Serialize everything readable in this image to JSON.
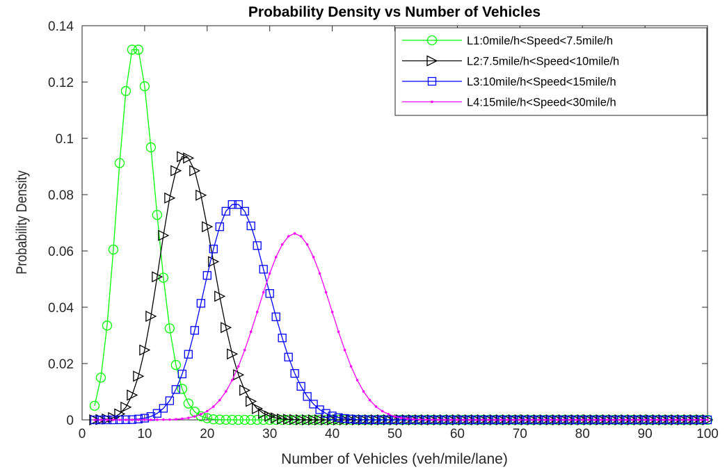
{
  "chart_data": {
    "type": "line",
    "title": "Probability Density vs Number of Vehicles",
    "xlabel": "Number of Vehicles (veh/mile/lane)",
    "ylabel": "Probability Density",
    "xlim": [
      0,
      100
    ],
    "ylim": [
      0,
      0.14
    ],
    "x_ticks": [
      0,
      10,
      20,
      30,
      40,
      50,
      60,
      70,
      80,
      90,
      100
    ],
    "x_tick_labels": [
      "0",
      "10",
      "20",
      "30",
      "40",
      "50",
      "60",
      "70",
      "80",
      "90",
      "100"
    ],
    "y_ticks": [
      0,
      0.02,
      0.04,
      0.06,
      0.08,
      0.1,
      0.12,
      0.14
    ],
    "y_tick_labels": [
      "0",
      "0.02",
      "0.04",
      "0.06",
      "0.08",
      "0.1",
      "0.12",
      "0.14"
    ],
    "grid": false,
    "legend_position": "top-right",
    "x": [
      2,
      3,
      4,
      5,
      6,
      7,
      8,
      9,
      10,
      11,
      12,
      13,
      14,
      15,
      16,
      17,
      18,
      19,
      20,
      21,
      22,
      23,
      24,
      25,
      26,
      27,
      28,
      29,
      30,
      31,
      32,
      33,
      34,
      35,
      36,
      37,
      38,
      39,
      40,
      41,
      42,
      43,
      44,
      45,
      46,
      47,
      48,
      49,
      50,
      51,
      52,
      53,
      54,
      55,
      56,
      57,
      58,
      59,
      60,
      61,
      62,
      63,
      64,
      65,
      66,
      67,
      68,
      69,
      70,
      71,
      72,
      73,
      74,
      75,
      76,
      77,
      78,
      79,
      80,
      81,
      82,
      83,
      84,
      85,
      86,
      87,
      88,
      89,
      90,
      91,
      92,
      93,
      94,
      95,
      96,
      97,
      98,
      99,
      100
    ],
    "series": [
      {
        "name": "L1:0mile/h<Speed<7.5mile/h",
        "color": "#00ff00",
        "marker": "circle",
        "marker_every": 1,
        "values": [
          0.005,
          0.015,
          0.0335,
          0.0605,
          0.0912,
          0.1168,
          0.1315,
          0.1315,
          0.1185,
          0.0968,
          0.0728,
          0.0505,
          0.0325,
          0.0195,
          0.011,
          0.0058,
          0.0029,
          0.0013,
          0.0006,
          0.0002,
          0.0001,
          4e-05,
          1e-05,
          0,
          0,
          0,
          0,
          0,
          0,
          0,
          0,
          0,
          0,
          0,
          0,
          0,
          0,
          0,
          0,
          0,
          0,
          0,
          0,
          0,
          0,
          0,
          0,
          0,
          0,
          0,
          0,
          0,
          0,
          0,
          0,
          0,
          0,
          0,
          0,
          0,
          0,
          0,
          0,
          0,
          0,
          0,
          0,
          0,
          0,
          0,
          0,
          0,
          0,
          0,
          0,
          0,
          0,
          0,
          0,
          0,
          0,
          0,
          0,
          0,
          0,
          0,
          0,
          0,
          0,
          0,
          0,
          0,
          0,
          0,
          0,
          0,
          0,
          0,
          0
        ]
      },
      {
        "name": "L2:7.5mile/h<Speed<10mile/h",
        "color": "#000000",
        "marker": "triangle-right",
        "marker_every": 1,
        "values": [
          0,
          0.0001,
          0.0003,
          0.0008,
          0.0021,
          0.0045,
          0.0088,
          0.0155,
          0.0248,
          0.0368,
          0.0508,
          0.0655,
          0.0788,
          0.0885,
          0.0935,
          0.093,
          0.0885,
          0.0798,
          0.0686,
          0.0562,
          0.0439,
          0.0328,
          0.0234,
          0.016,
          0.0105,
          0.0066,
          0.004,
          0.0023,
          0.0013,
          0.0007,
          0.0003,
          0.0002,
          0.0001,
          3e-05,
          1e-05,
          0,
          0,
          0,
          0,
          0,
          0,
          0,
          0,
          0,
          0,
          0,
          0,
          0,
          0,
          0,
          0,
          0,
          0,
          0,
          0,
          0,
          0,
          0,
          0,
          0,
          0,
          0,
          0,
          0,
          0,
          0,
          0,
          0,
          0,
          0,
          0,
          0,
          0,
          0,
          0,
          0,
          0,
          0,
          0,
          0,
          0,
          0,
          0,
          0,
          0,
          0,
          0,
          0,
          0,
          0,
          0,
          0,
          0,
          0,
          0,
          0,
          0,
          0,
          0
        ]
      },
      {
        "name": "L3:10mile/h<Speed<15mile/h",
        "color": "#0000ff",
        "marker": "square",
        "marker_every": 1,
        "values": [
          0,
          0,
          0,
          0,
          2e-05,
          5e-05,
          0.0001,
          0.0003,
          0.0006,
          0.0012,
          0.0023,
          0.0041,
          0.0068,
          0.0108,
          0.0163,
          0.0233,
          0.0318,
          0.0414,
          0.0513,
          0.0607,
          0.0686,
          0.0741,
          0.0765,
          0.0765,
          0.0741,
          0.0689,
          0.0619,
          0.0535,
          0.0449,
          0.0366,
          0.0291,
          0.0223,
          0.0165,
          0.0119,
          0.0083,
          0.0056,
          0.0036,
          0.0023,
          0.0014,
          0.0008,
          0.0005,
          0.0003,
          0.0001,
          8e-05,
          4e-05,
          2e-05,
          1e-05,
          0,
          0,
          0,
          0,
          0,
          0,
          0,
          0,
          0,
          0,
          0,
          0,
          0,
          0,
          0,
          0,
          0,
          0,
          0,
          0,
          0,
          0,
          0,
          0,
          0,
          0,
          0,
          0,
          0,
          0,
          0,
          0,
          0,
          0,
          0,
          0,
          0,
          0,
          0,
          0,
          0,
          0,
          0,
          0,
          0,
          0,
          0,
          0,
          0,
          0,
          0,
          0
        ]
      },
      {
        "name": "L4:15mile/h<Speed<30mile/h",
        "color": "#ff00ff",
        "marker": "dot",
        "marker_every": 1,
        "values": [
          0,
          0,
          0,
          0,
          0,
          0,
          0,
          0,
          1e-05,
          2e-05,
          4e-05,
          8e-05,
          0.0001,
          0.0002,
          0.0004,
          0.0007,
          0.0012,
          0.002,
          0.0031,
          0.0047,
          0.007,
          0.0101,
          0.0141,
          0.019,
          0.0248,
          0.0313,
          0.0383,
          0.0453,
          0.052,
          0.0578,
          0.0623,
          0.0652,
          0.0662,
          0.0652,
          0.0623,
          0.0578,
          0.052,
          0.0453,
          0.0383,
          0.0313,
          0.0248,
          0.019,
          0.0141,
          0.0101,
          0.007,
          0.0047,
          0.0031,
          0.002,
          0.0012,
          0.0007,
          0.0004,
          0.0002,
          0.0001,
          8e-05,
          4e-05,
          2e-05,
          1e-05,
          0,
          0,
          0,
          0,
          0,
          0,
          0,
          0,
          0,
          0,
          0,
          0,
          0,
          0,
          0,
          0,
          0,
          0,
          0,
          0,
          0,
          0,
          0,
          0,
          0,
          0,
          0,
          0,
          0,
          0,
          0,
          0,
          0,
          0,
          0,
          0,
          0,
          0,
          0,
          0,
          0,
          0
        ]
      }
    ]
  }
}
